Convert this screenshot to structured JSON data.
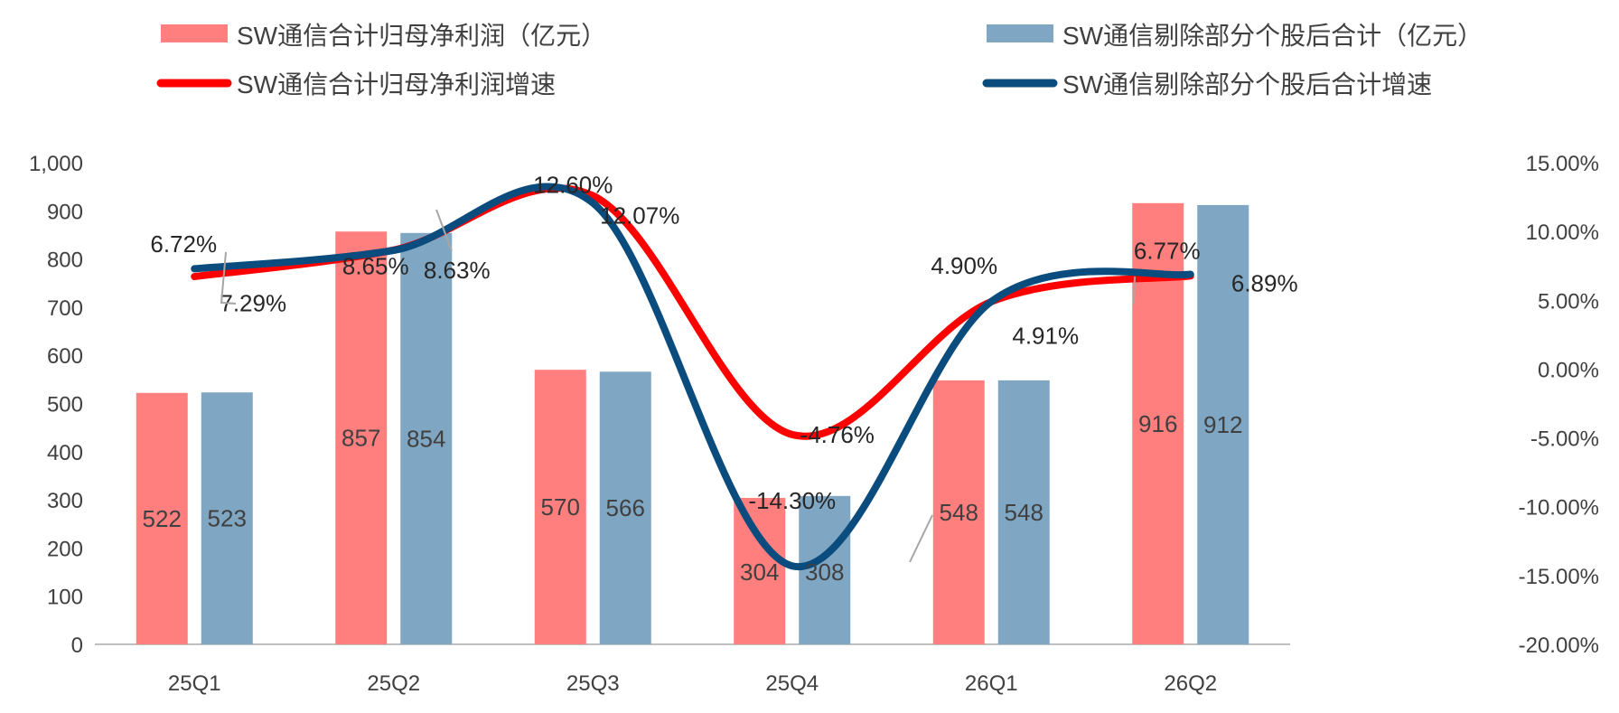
{
  "chart_data": {
    "type": "bar",
    "categories": [
      "25Q1",
      "25Q2",
      "25Q3",
      "25Q4",
      "26Q1",
      "26Q2"
    ],
    "y_left": {
      "ylim": [
        0,
        1000
      ],
      "ticks": [
        "0",
        "100",
        "200",
        "300",
        "400",
        "500",
        "600",
        "700",
        "800",
        "900",
        "1,000"
      ]
    },
    "y_right": {
      "ylim": [
        -20,
        15
      ],
      "ticks": [
        "-20.00%",
        "-15.00%",
        "-10.00%",
        "-5.00%",
        "0.00%",
        "5.00%",
        "10.00%",
        "15.00%"
      ]
    },
    "bar_series": [
      {
        "name": "SW通信合计归母净利润（亿元）",
        "color": "#ff7f7f",
        "values": [
          522,
          857,
          570,
          304,
          548,
          916
        ],
        "labels": [
          "522",
          "857",
          "570",
          "304",
          "548",
          "916"
        ]
      },
      {
        "name": "SW通信剔除部分个股后合计（亿元）",
        "color": "#7fa6c2",
        "values": [
          523,
          854,
          566,
          308,
          548,
          912
        ],
        "labels": [
          "523",
          "854",
          "566",
          "308",
          "548",
          "912"
        ]
      }
    ],
    "line_series": [
      {
        "name": "SW通信合计归母净利润增速",
        "color": "#ff0000",
        "values": [
          6.72,
          8.65,
          12.6,
          -4.76,
          4.9,
          6.77
        ],
        "labels": [
          "6.72%",
          "8.65%",
          "12.60%",
          "-4.76%",
          "4.90%",
          "6.77%"
        ]
      },
      {
        "name": "SW通信剔除部分个股后合计增速",
        "color": "#0b4c7e",
        "values": [
          7.29,
          8.63,
          12.07,
          -14.3,
          4.91,
          6.89
        ],
        "labels": [
          "7.29%",
          "8.63%",
          "12.07%",
          "-14.30%",
          "4.91%",
          "6.89%"
        ]
      }
    ],
    "legend_position": "top",
    "grid": false
  }
}
